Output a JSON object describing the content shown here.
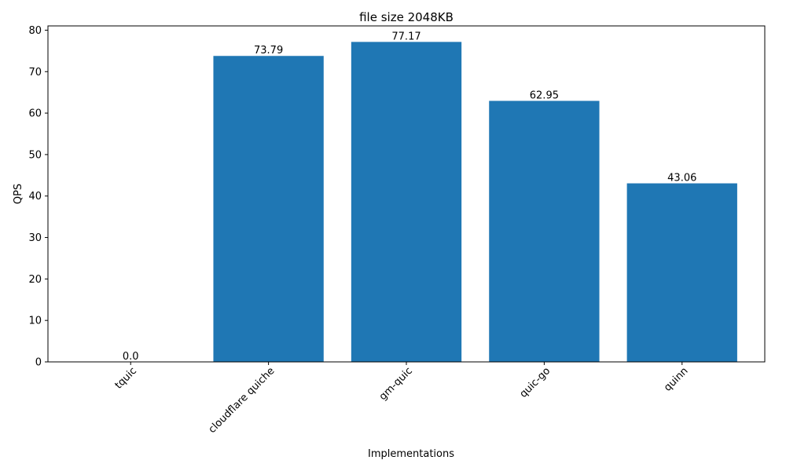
{
  "chart_data": {
    "type": "bar",
    "title": "file size 2048KB",
    "xlabel": "Implementations",
    "ylabel": "QPS",
    "categories": [
      "tquic",
      "cloudflare quiche",
      "gm-quic",
      "quic-go",
      "quinn"
    ],
    "values": [
      0.0,
      73.79,
      77.17,
      62.95,
      43.06
    ],
    "data_labels": [
      "0.0",
      "73.79",
      "77.17",
      "62.95",
      "43.06"
    ],
    "ylim": [
      0,
      81.03
    ],
    "yticks": [
      0,
      10,
      20,
      30,
      40,
      50,
      60,
      70,
      80
    ],
    "grid": false,
    "bar_color": "#1f77b4",
    "xtick_rotation_deg": 45
  }
}
